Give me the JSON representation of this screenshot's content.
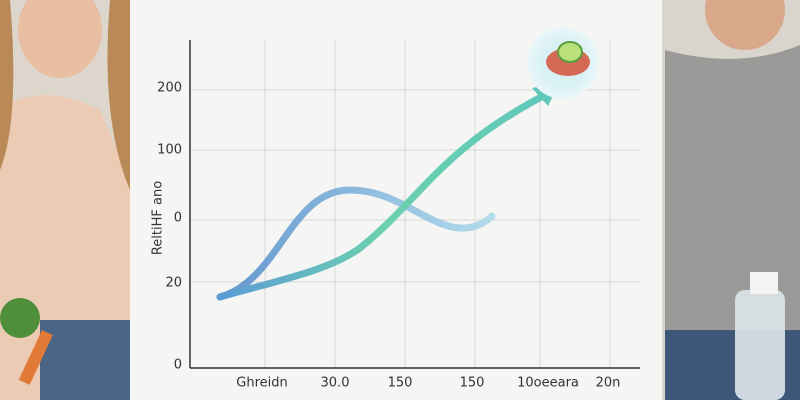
{
  "chart": {
    "axis_label": "ReltiHF ano",
    "y_labels": [
      "200",
      "100",
      "0",
      "20",
      "0"
    ],
    "x_labels": [
      "Ghreidn",
      "30.0",
      "150",
      "150",
      "10oeeara",
      "20n"
    ]
  }
}
